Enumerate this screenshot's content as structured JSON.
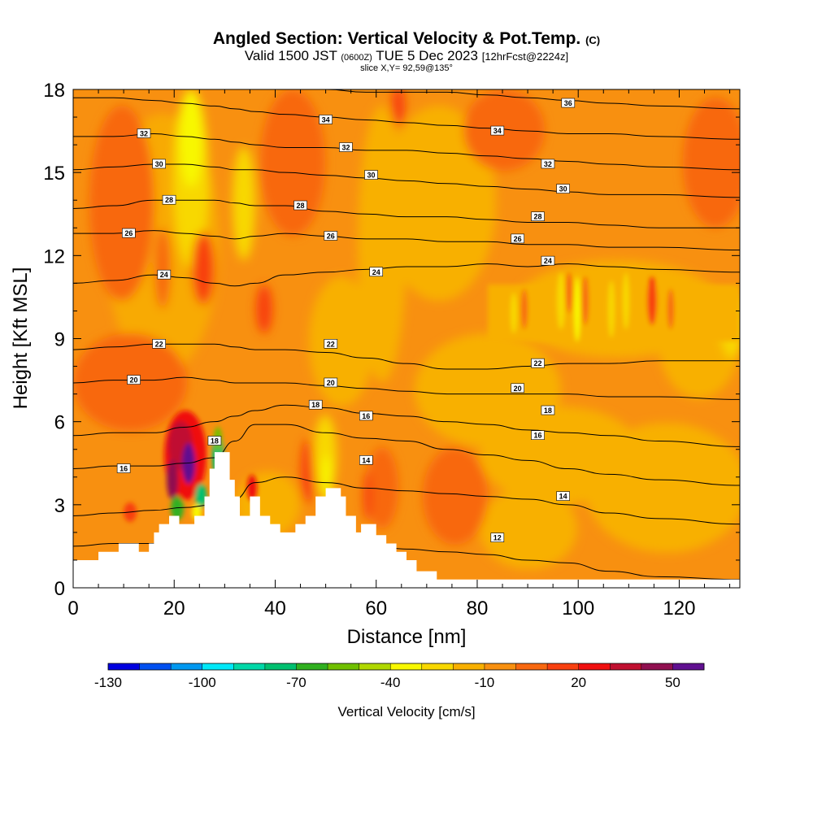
{
  "header": {
    "title_main": "Angled Section: Vertical Velocity & Pot.Temp.",
    "title_mark": "(C)",
    "sub_a": "Valid 1500 JST",
    "sub_b": "(0600Z)",
    "sub_c": "TUE 5 Dec 2023",
    "sub_d": "[12hrFcst@2224z]",
    "slice": "slice X,Y= 92,59@135°"
  },
  "chart_data": {
    "type": "heatmap",
    "title": "Angled Section: Vertical Velocity & Pot.Temp.",
    "xlabel": "Distance [nm]",
    "ylabel": "Height [Kft MSL]",
    "xlim": [
      0,
      132
    ],
    "ylim": [
      0,
      18
    ],
    "x_ticks": [
      "0",
      "20",
      "40",
      "60",
      "80",
      "100",
      "120"
    ],
    "y_ticks": [
      "0",
      "3",
      "6",
      "9",
      "12",
      "15",
      "18"
    ],
    "colorbar": {
      "title": "Vertical Velocity [cm/s]",
      "labels": [
        "-130",
        "-100",
        "-70",
        "-40",
        "-10",
        "20",
        "50"
      ],
      "colors": [
        "#0000e0",
        "#0050f0",
        "#0098f0",
        "#00e8f8",
        "#00d8a8",
        "#00c070",
        "#30b020",
        "#70c000",
        "#b0d800",
        "#f8f800",
        "#f8d800",
        "#f8b000",
        "#f89010",
        "#f86810",
        "#f84010",
        "#f01010",
        "#c01030",
        "#901050",
        "#601090"
      ]
    },
    "terrain_profile": [
      [
        0,
        1
      ],
      [
        5,
        1
      ],
      [
        5,
        1.3
      ],
      [
        9,
        1.3
      ],
      [
        9,
        1.6
      ],
      [
        13,
        1.6
      ],
      [
        13,
        1.3
      ],
      [
        15,
        1.3
      ],
      [
        15,
        1.6
      ],
      [
        16,
        1.6
      ],
      [
        16,
        2
      ],
      [
        17,
        2
      ],
      [
        17,
        2.3
      ],
      [
        19,
        2.3
      ],
      [
        19,
        2.6
      ],
      [
        21,
        2.6
      ],
      [
        21,
        2.3
      ],
      [
        24,
        2.3
      ],
      [
        24,
        2.6
      ],
      [
        26,
        2.6
      ],
      [
        26,
        3.3
      ],
      [
        27,
        3.3
      ],
      [
        27,
        4.3
      ],
      [
        28,
        4.3
      ],
      [
        28,
        4.9
      ],
      [
        31,
        4.9
      ],
      [
        31,
        3.9
      ],
      [
        32,
        3.9
      ],
      [
        32,
        3.3
      ],
      [
        33,
        3.3
      ],
      [
        33,
        2.6
      ],
      [
        35,
        2.6
      ],
      [
        35,
        3.3
      ],
      [
        37,
        3.3
      ],
      [
        37,
        2.6
      ],
      [
        39,
        2.6
      ],
      [
        39,
        2.3
      ],
      [
        41,
        2.3
      ],
      [
        41,
        2
      ],
      [
        44,
        2
      ],
      [
        44,
        2.3
      ],
      [
        46,
        2.3
      ],
      [
        46,
        2.6
      ],
      [
        48,
        2.6
      ],
      [
        48,
        3.3
      ],
      [
        50,
        3.3
      ],
      [
        50,
        3.6
      ],
      [
        53,
        3.6
      ],
      [
        53,
        3.3
      ],
      [
        54,
        3.3
      ],
      [
        54,
        2.6
      ],
      [
        56,
        2.6
      ],
      [
        56,
        2
      ],
      [
        57,
        2
      ],
      [
        57,
        2.3
      ],
      [
        60,
        2.3
      ],
      [
        60,
        1.9
      ],
      [
        62,
        1.9
      ],
      [
        62,
        1.6
      ],
      [
        64,
        1.6
      ],
      [
        64,
        1.3
      ],
      [
        66,
        1.3
      ],
      [
        66,
        1
      ],
      [
        68,
        1
      ],
      [
        68,
        0.6
      ],
      [
        72,
        0.6
      ],
      [
        72,
        0.3
      ],
      [
        132,
        0.3
      ]
    ],
    "theta_contours": [
      {
        "label": "12",
        "y": [
          1.5,
          1.6,
          1.6,
          1.6,
          1.8,
          1.9,
          1.9,
          1.8,
          1.8,
          1.6,
          1.4,
          1.3,
          1.2,
          1.0,
          0.9,
          0.6,
          0.4,
          0.3
        ]
      },
      {
        "label": "14",
        "y": [
          2.6,
          2.7,
          2.8,
          2.9,
          3.0,
          3.2,
          3.8,
          4.0,
          3.8,
          3.6,
          3.5,
          3.4,
          3.3,
          3.2,
          3.0,
          2.7,
          2.5,
          2.3
        ]
      },
      {
        "label": "16",
        "y": [
          4.3,
          4.4,
          4.4,
          4.5,
          4.7,
          5.3,
          5.9,
          5.9,
          5.6,
          5.4,
          5.3,
          5.0,
          4.8,
          4.6,
          4.3,
          4.1,
          3.9,
          3.7
        ]
      },
      {
        "label": "18",
        "y": [
          5.5,
          5.6,
          5.6,
          5.8,
          6.0,
          6.2,
          6.4,
          6.6,
          6.5,
          6.3,
          6.2,
          6.0,
          5.9,
          5.7,
          5.6,
          5.5,
          5.3,
          5.1
        ]
      },
      {
        "label": "20",
        "y": [
          7.4,
          7.5,
          7.5,
          7.6,
          7.5,
          7.4,
          7.4,
          7.4,
          7.3,
          7.2,
          7.1,
          7.0,
          7.0,
          7.0,
          7.0,
          6.9,
          6.9,
          6.8
        ]
      },
      {
        "label": "22",
        "y": [
          8.6,
          8.7,
          8.8,
          8.8,
          8.8,
          8.7,
          8.6,
          8.6,
          8.5,
          8.3,
          8.1,
          7.9,
          7.9,
          8.0,
          8.1,
          8.1,
          8.2,
          8.2
        ]
      },
      {
        "label": "24",
        "y": [
          11.0,
          11.1,
          11.3,
          11.2,
          11.0,
          10.9,
          11.0,
          11.3,
          11.4,
          11.5,
          11.6,
          11.6,
          11.7,
          11.6,
          11.7,
          11.6,
          11.5,
          11.4
        ]
      },
      {
        "label": "26",
        "y": [
          12.8,
          12.8,
          12.9,
          12.8,
          12.7,
          12.6,
          12.7,
          12.8,
          12.7,
          12.6,
          12.6,
          12.5,
          12.5,
          12.4,
          12.4,
          12.3,
          12.3,
          12.2
        ]
      },
      {
        "label": "28",
        "y": [
          13.7,
          13.8,
          14.0,
          14.0,
          14.0,
          13.9,
          13.8,
          13.8,
          13.6,
          13.5,
          13.4,
          13.4,
          13.3,
          13.2,
          13.2,
          13.1,
          13.0,
          13.0
        ]
      },
      {
        "label": "30",
        "y": [
          15.1,
          15.2,
          15.3,
          15.3,
          15.2,
          15.1,
          15.1,
          15.0,
          14.9,
          14.8,
          14.7,
          14.6,
          14.5,
          14.4,
          14.3,
          14.2,
          14.2,
          14.1
        ]
      },
      {
        "label": "32",
        "y": [
          16.3,
          16.3,
          16.4,
          16.3,
          16.2,
          16.1,
          16.0,
          15.9,
          15.9,
          15.8,
          15.8,
          15.7,
          15.6,
          15.5,
          15.4,
          15.3,
          15.2,
          15.1
        ]
      },
      {
        "label": "34",
        "y": [
          17.7,
          17.7,
          17.6,
          17.5,
          17.4,
          17.3,
          17.2,
          17.1,
          17.0,
          16.9,
          16.8,
          16.7,
          16.6,
          16.5,
          16.4,
          16.4,
          16.3,
          16.2
        ]
      },
      {
        "label": "36",
        "y": [
          18.0,
          18.0,
          18.0,
          18.0,
          18.0,
          18.0,
          18.0,
          18.0,
          18.0,
          17.9,
          17.9,
          17.9,
          17.8,
          17.7,
          17.6,
          17.5,
          17.4,
          17.3
        ]
      }
    ],
    "contour_x": [
      0,
      8,
      16,
      22,
      28,
      32,
      36,
      42,
      50,
      58,
      66,
      74,
      82,
      90,
      98,
      106,
      116,
      132
    ],
    "contour_labels_shown": [
      {
        "text": "12",
        "x": 84,
        "y": 1.8
      },
      {
        "text": "14",
        "x": 58,
        "y": 4.6
      },
      {
        "text": "14",
        "x": 97,
        "y": 3.3
      },
      {
        "text": "16",
        "x": 10,
        "y": 4.3
      },
      {
        "text": "16",
        "x": 58,
        "y": 6.2
      },
      {
        "text": "16",
        "x": 92,
        "y": 5.5
      },
      {
        "text": "18",
        "x": 28,
        "y": 5.3
      },
      {
        "text": "18",
        "x": 48,
        "y": 6.6
      },
      {
        "text": "18",
        "x": 94,
        "y": 6.4
      },
      {
        "text": "20",
        "x": 12,
        "y": 7.5
      },
      {
        "text": "20",
        "x": 51,
        "y": 7.4
      },
      {
        "text": "20",
        "x": 88,
        "y": 7.2
      },
      {
        "text": "22",
        "x": 17,
        "y": 8.8
      },
      {
        "text": "22",
        "x": 51,
        "y": 8.8
      },
      {
        "text": "22",
        "x": 92,
        "y": 8.1
      },
      {
        "text": "24",
        "x": 18,
        "y": 11.3
      },
      {
        "text": "24",
        "x": 60,
        "y": 11.4
      },
      {
        "text": "24",
        "x": 94,
        "y": 11.8
      },
      {
        "text": "26",
        "x": 11,
        "y": 12.8
      },
      {
        "text": "26",
        "x": 51,
        "y": 12.7
      },
      {
        "text": "26",
        "x": 88,
        "y": 12.6
      },
      {
        "text": "28",
        "x": 19,
        "y": 14.0
      },
      {
        "text": "28",
        "x": 45,
        "y": 13.8
      },
      {
        "text": "28",
        "x": 92,
        "y": 13.4
      },
      {
        "text": "30",
        "x": 17,
        "y": 15.3
      },
      {
        "text": "30",
        "x": 59,
        "y": 14.9
      },
      {
        "text": "30",
        "x": 97,
        "y": 14.4
      },
      {
        "text": "32",
        "x": 14,
        "y": 16.4
      },
      {
        "text": "32",
        "x": 54,
        "y": 15.9
      },
      {
        "text": "32",
        "x": 94,
        "y": 15.3
      },
      {
        "text": "34",
        "x": 50,
        "y": 16.9
      },
      {
        "text": "34",
        "x": 84,
        "y": 16.5
      },
      {
        "text": "36",
        "x": 98,
        "y": 17.5
      }
    ]
  }
}
